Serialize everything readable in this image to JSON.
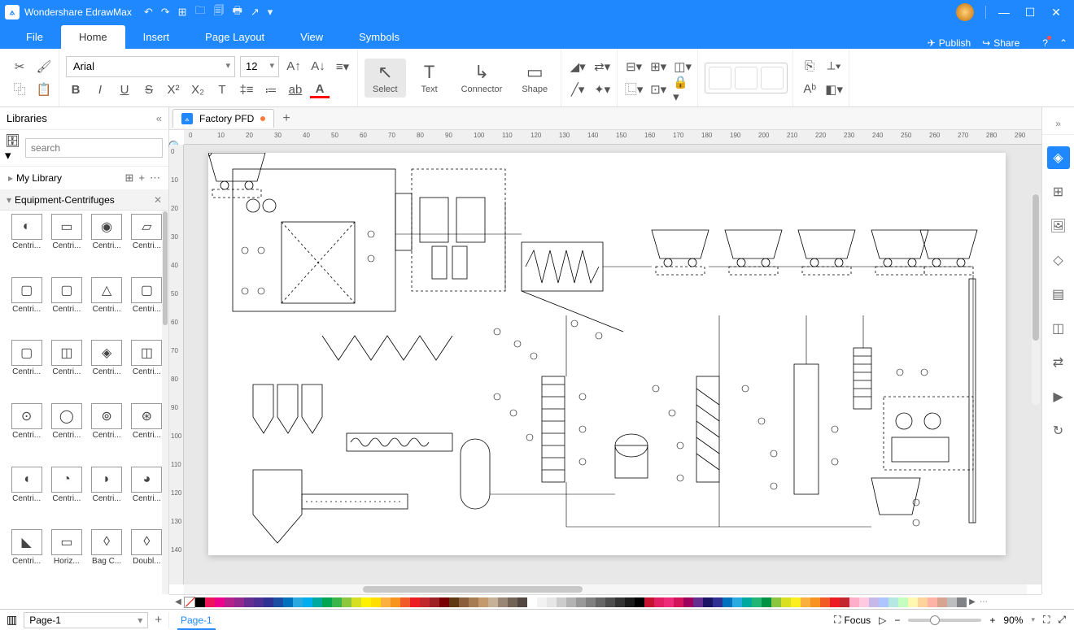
{
  "app": {
    "title": "Wondershare EdrawMax"
  },
  "titlebar_icons": [
    "↶",
    "↷",
    "⊞",
    "🗀",
    "🗐",
    "🖶",
    "↗",
    "▾"
  ],
  "window_buttons": [
    "—",
    "☐",
    "✕"
  ],
  "ribbon": {
    "tabs": [
      "File",
      "Home",
      "Insert",
      "Page Layout",
      "View",
      "Symbols"
    ],
    "active": 1,
    "publish": "Publish",
    "share": "Share"
  },
  "toolbar": {
    "font": "Arial",
    "size": "12",
    "select": "Select",
    "text": "Text",
    "connector": "Connector",
    "shape": "Shape"
  },
  "sidebar": {
    "title": "Libraries",
    "search_placeholder": "search",
    "mylib": "My Library",
    "category": "Equipment-Centrifuges",
    "shapes": [
      "Centri...",
      "Centri...",
      "Centri...",
      "Centri...",
      "Centri...",
      "Centri...",
      "Centri...",
      "Centri...",
      "Centri...",
      "Centri...",
      "Centri...",
      "Centri...",
      "Centri...",
      "Centri...",
      "Centri...",
      "Centri...",
      "Centri...",
      "Centri...",
      "Centri...",
      "Centri...",
      "Centri...",
      "Horiz...",
      "Bag C...",
      "Doubl..."
    ]
  },
  "document": {
    "tab": "Factory PFD",
    "page_tab": "Page-1"
  },
  "ruler_h": [
    "0",
    "10",
    "20",
    "30",
    "40",
    "50",
    "60",
    "70",
    "80",
    "90",
    "100",
    "110",
    "120",
    "130",
    "140",
    "150",
    "160",
    "170",
    "180",
    "190",
    "200",
    "210",
    "220",
    "230",
    "240",
    "250",
    "260",
    "270",
    "280",
    "290"
  ],
  "ruler_v": [
    "0",
    "10",
    "20",
    "30",
    "40",
    "50",
    "60",
    "70",
    "80",
    "90",
    "100",
    "110",
    "120",
    "130",
    "140"
  ],
  "colorstrip": [
    "#000000",
    "#ed145b",
    "#ec008c",
    "#b31f8b",
    "#92278f",
    "#652d90",
    "#4c2f92",
    "#2e3192",
    "#1b4ea3",
    "#0071bc",
    "#2aa9e0",
    "#00aeef",
    "#00a99d",
    "#00a651",
    "#39b54a",
    "#8dc63f",
    "#d7df23",
    "#fff200",
    "#ffde00",
    "#fbb040",
    "#f7941e",
    "#f15a29",
    "#ed1c24",
    "#c1272d",
    "#9e1f24",
    "#790000",
    "#603913",
    "#8b5e3c",
    "#a67c52",
    "#c49a6c",
    "#c7b299",
    "#998675",
    "#736357",
    "#534741",
    "#ffffff",
    "#f2f2f2",
    "#e6e6e6",
    "#cccccc",
    "#b3b3b3",
    "#999999",
    "#808080",
    "#666666",
    "#4d4d4d",
    "#333333",
    "#1a1a1a",
    "#000000",
    "#c41230",
    "#e01f64",
    "#ee2a7b",
    "#d4145a",
    "#9e005d",
    "#662d91",
    "#1b1464",
    "#2e3192",
    "#0071bc",
    "#29abe2",
    "#00a99d",
    "#22b573",
    "#009245",
    "#8cc63f",
    "#d9e021",
    "#fcee21",
    "#fbb03b",
    "#f7931e",
    "#f15a24",
    "#ed1c24",
    "#c1272d",
    "#ffaec9",
    "#ffc9e0",
    "#c7b8ea",
    "#aec6ff",
    "#b5e8e0",
    "#c5ffc0",
    "#fff8b0",
    "#ffd39b",
    "#ffb3a7",
    "#d6a48f",
    "#bcbec0",
    "#808285"
  ],
  "status": {
    "page_selector": "Page-1",
    "focus": "Focus",
    "zoom": "90%"
  }
}
